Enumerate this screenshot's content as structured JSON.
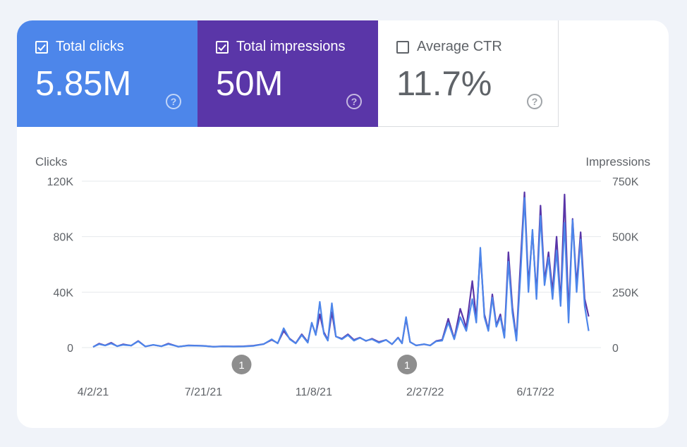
{
  "metrics": {
    "clicks": {
      "label": "Total clicks",
      "value": "5.85M",
      "checked": true
    },
    "impressions": {
      "label": "Total impressions",
      "value": "50M",
      "checked": true
    },
    "ctr": {
      "label": "Average CTR",
      "value": "11.7%",
      "checked": false
    },
    "help_glyph": "?"
  },
  "colors": {
    "clicks": "#4d86ea",
    "impressions": "#5a36a8",
    "grid": "#e6e8eb",
    "annotation": "#8e8e8e"
  },
  "chart_data": {
    "type": "line",
    "left_axis_label": "Clicks",
    "right_axis_label": "Impressions",
    "left_ylim": [
      0,
      120000
    ],
    "right_ylim": [
      0,
      750000
    ],
    "left_ticks": [
      {
        "value": 0,
        "label": "0"
      },
      {
        "value": 40000,
        "label": "40K"
      },
      {
        "value": 80000,
        "label": "80K"
      },
      {
        "value": 120000,
        "label": "120K"
      }
    ],
    "right_ticks": [
      {
        "value": 0,
        "label": "0"
      },
      {
        "value": 250000,
        "label": "250K"
      },
      {
        "value": 500000,
        "label": "500K"
      },
      {
        "value": 750000,
        "label": "750K"
      }
    ],
    "x_range": [
      0,
      495
    ],
    "x_ticks": [
      {
        "day": 0,
        "label": "4/2/21"
      },
      {
        "day": 110,
        "label": "7/21/21"
      },
      {
        "day": 220,
        "label": "11/8/21"
      },
      {
        "day": 331,
        "label": "2/27/22"
      },
      {
        "day": 441,
        "label": "6/17/22"
      }
    ],
    "annotations": [
      {
        "day": 148,
        "label": "1"
      },
      {
        "day": 313,
        "label": "1"
      }
    ],
    "series": [
      {
        "name": "Clicks",
        "axis": "left",
        "points": [
          [
            0,
            500
          ],
          [
            6,
            2500
          ],
          [
            12,
            1500
          ],
          [
            18,
            3000
          ],
          [
            24,
            1000
          ],
          [
            30,
            2000
          ],
          [
            38,
            1500
          ],
          [
            45,
            4500
          ],
          [
            52,
            800
          ],
          [
            60,
            2000
          ],
          [
            68,
            900
          ],
          [
            75,
            2500
          ],
          [
            85,
            700
          ],
          [
            95,
            1500
          ],
          [
            110,
            1200
          ],
          [
            120,
            600
          ],
          [
            130,
            900
          ],
          [
            140,
            700
          ],
          [
            150,
            800
          ],
          [
            160,
            1200
          ],
          [
            170,
            2500
          ],
          [
            178,
            6000
          ],
          [
            184,
            3000
          ],
          [
            190,
            14000
          ],
          [
            196,
            6000
          ],
          [
            202,
            3000
          ],
          [
            208,
            9000
          ],
          [
            214,
            3500
          ],
          [
            218,
            18000
          ],
          [
            222,
            9000
          ],
          [
            226,
            33000
          ],
          [
            230,
            10000
          ],
          [
            234,
            5000
          ],
          [
            238,
            32000
          ],
          [
            242,
            8000
          ],
          [
            248,
            6000
          ],
          [
            254,
            9000
          ],
          [
            260,
            5000
          ],
          [
            266,
            7000
          ],
          [
            272,
            5000
          ],
          [
            278,
            6000
          ],
          [
            285,
            3500
          ],
          [
            292,
            5500
          ],
          [
            298,
            2500
          ],
          [
            304,
            7000
          ],
          [
            308,
            3000
          ],
          [
            312,
            22000
          ],
          [
            316,
            4000
          ],
          [
            322,
            1500
          ],
          [
            330,
            2500
          ],
          [
            336,
            1500
          ],
          [
            342,
            4500
          ],
          [
            348,
            5000
          ],
          [
            354,
            18000
          ],
          [
            360,
            6000
          ],
          [
            366,
            22000
          ],
          [
            372,
            12000
          ],
          [
            378,
            35000
          ],
          [
            382,
            18000
          ],
          [
            386,
            72000
          ],
          [
            390,
            22000
          ],
          [
            394,
            12000
          ],
          [
            398,
            36000
          ],
          [
            402,
            15000
          ],
          [
            406,
            22000
          ],
          [
            410,
            7000
          ],
          [
            414,
            62000
          ],
          [
            418,
            25000
          ],
          [
            422,
            5000
          ],
          [
            426,
            52000
          ],
          [
            430,
            108000
          ],
          [
            434,
            40000
          ],
          [
            438,
            85000
          ],
          [
            442,
            35000
          ],
          [
            446,
            95000
          ],
          [
            450,
            45000
          ],
          [
            454,
            65000
          ],
          [
            458,
            35000
          ],
          [
            462,
            70000
          ],
          [
            466,
            30000
          ],
          [
            470,
            90000
          ],
          [
            474,
            18000
          ],
          [
            478,
            92000
          ],
          [
            482,
            40000
          ],
          [
            486,
            78000
          ],
          [
            490,
            30000
          ],
          [
            494,
            12000
          ]
        ]
      },
      {
        "name": "Impressions",
        "axis": "right",
        "points": [
          [
            0,
            3000
          ],
          [
            6,
            18000
          ],
          [
            12,
            10000
          ],
          [
            18,
            22000
          ],
          [
            24,
            6000
          ],
          [
            30,
            15000
          ],
          [
            38,
            9000
          ],
          [
            45,
            30000
          ],
          [
            52,
            5000
          ],
          [
            60,
            12000
          ],
          [
            68,
            6000
          ],
          [
            75,
            18000
          ],
          [
            85,
            4000
          ],
          [
            95,
            10000
          ],
          [
            110,
            8000
          ],
          [
            120,
            4000
          ],
          [
            130,
            6000
          ],
          [
            140,
            5000
          ],
          [
            150,
            6000
          ],
          [
            160,
            9000
          ],
          [
            170,
            16000
          ],
          [
            178,
            35000
          ],
          [
            184,
            20000
          ],
          [
            190,
            75000
          ],
          [
            196,
            40000
          ],
          [
            202,
            20000
          ],
          [
            208,
            60000
          ],
          [
            214,
            25000
          ],
          [
            218,
            110000
          ],
          [
            222,
            60000
          ],
          [
            226,
            150000
          ],
          [
            230,
            70000
          ],
          [
            234,
            35000
          ],
          [
            238,
            160000
          ],
          [
            242,
            50000
          ],
          [
            248,
            40000
          ],
          [
            254,
            60000
          ],
          [
            260,
            35000
          ],
          [
            266,
            45000
          ],
          [
            272,
            30000
          ],
          [
            278,
            40000
          ],
          [
            285,
            25000
          ],
          [
            292,
            35000
          ],
          [
            298,
            15000
          ],
          [
            304,
            45000
          ],
          [
            308,
            20000
          ],
          [
            312,
            130000
          ],
          [
            316,
            25000
          ],
          [
            322,
            10000
          ],
          [
            330,
            15000
          ],
          [
            336,
            10000
          ],
          [
            342,
            30000
          ],
          [
            348,
            35000
          ],
          [
            354,
            130000
          ],
          [
            360,
            40000
          ],
          [
            366,
            175000
          ],
          [
            372,
            90000
          ],
          [
            378,
            300000
          ],
          [
            382,
            130000
          ],
          [
            386,
            430000
          ],
          [
            390,
            150000
          ],
          [
            394,
            80000
          ],
          [
            398,
            240000
          ],
          [
            402,
            100000
          ],
          [
            406,
            150000
          ],
          [
            410,
            50000
          ],
          [
            414,
            430000
          ],
          [
            418,
            180000
          ],
          [
            422,
            40000
          ],
          [
            426,
            380000
          ],
          [
            430,
            700000
          ],
          [
            434,
            280000
          ],
          [
            438,
            520000
          ],
          [
            442,
            240000
          ],
          [
            446,
            640000
          ],
          [
            450,
            300000
          ],
          [
            454,
            430000
          ],
          [
            458,
            250000
          ],
          [
            462,
            500000
          ],
          [
            466,
            200000
          ],
          [
            470,
            690000
          ],
          [
            474,
            150000
          ],
          [
            478,
            580000
          ],
          [
            482,
            280000
          ],
          [
            486,
            520000
          ],
          [
            490,
            220000
          ],
          [
            494,
            140000
          ]
        ]
      }
    ]
  }
}
